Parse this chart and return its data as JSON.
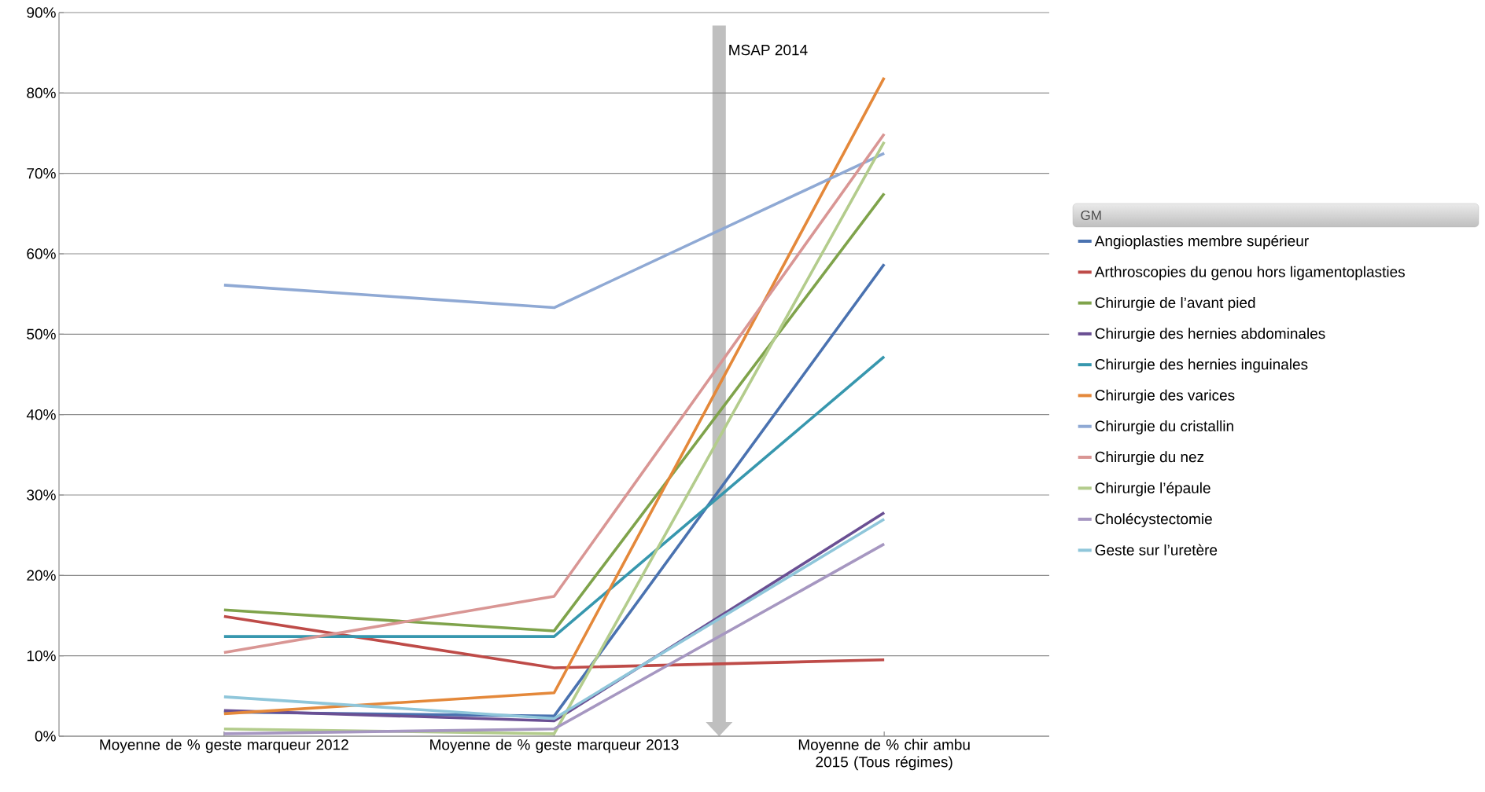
{
  "chart_data": {
    "type": "line",
    "categories": [
      "Moyenne de % geste marqueur 2012",
      "Moyenne de % geste marqueur 2013",
      "Moyenne de % chir ambu 2015 (Tous régimes)"
    ],
    "series": [
      {
        "name": "Angioplasties membre supérieur",
        "color": "#4a72b0",
        "values": [
          3.0,
          2.5,
          58.7
        ]
      },
      {
        "name": "Arthroscopies du genou hors ligamentoplasties",
        "color": "#be4b48",
        "values": [
          14.9,
          8.5,
          9.5
        ]
      },
      {
        "name": "Chirurgie de l’avant pied",
        "color": "#7fa34b",
        "values": [
          15.7,
          13.1,
          67.5
        ]
      },
      {
        "name": "Chirurgie des hernies abdominales",
        "color": "#6a4f93",
        "values": [
          3.2,
          1.9,
          27.8
        ]
      },
      {
        "name": "Chirurgie des hernies inguinales",
        "color": "#3797ae",
        "values": [
          12.4,
          12.4,
          47.2
        ]
      },
      {
        "name": "Chirurgie des varices",
        "color": "#e4883a",
        "values": [
          2.8,
          5.4,
          81.9
        ]
      },
      {
        "name": "Chirurgie du cristallin",
        "color": "#8fa9d4",
        "values": [
          56.1,
          53.3,
          72.5
        ]
      },
      {
        "name": "Chirurgie du nez",
        "color": "#d99694",
        "values": [
          10.4,
          17.4,
          74.9
        ]
      },
      {
        "name": "Chirurgie l’épaule",
        "color": "#b3cc8c",
        "values": [
          0.9,
          0.3,
          73.9
        ]
      },
      {
        "name": "Cholécystectomie",
        "color": "#a697c1",
        "values": [
          0.3,
          0.9,
          23.9
        ]
      },
      {
        "name": "Geste sur l’uretère",
        "color": "#8fc6da",
        "values": [
          4.9,
          2.2,
          27.0
        ]
      }
    ],
    "ylim": [
      0,
      90
    ],
    "yticks": [
      {
        "value": 0,
        "label": "0%"
      },
      {
        "value": 10,
        "label": "10%"
      },
      {
        "value": 20,
        "label": "20%"
      },
      {
        "value": 30,
        "label": "30%"
      },
      {
        "value": 40,
        "label": "40%"
      },
      {
        "value": 50,
        "label": "50%"
      },
      {
        "value": 60,
        "label": "60%"
      },
      {
        "value": 70,
        "label": "70%"
      },
      {
        "value": 80,
        "label": "80%"
      },
      {
        "value": 90,
        "label": "90%"
      }
    ],
    "grid": "y",
    "legend": "right",
    "legend_title": "GM",
    "annotations": [
      "MSAP 2014"
    ]
  }
}
